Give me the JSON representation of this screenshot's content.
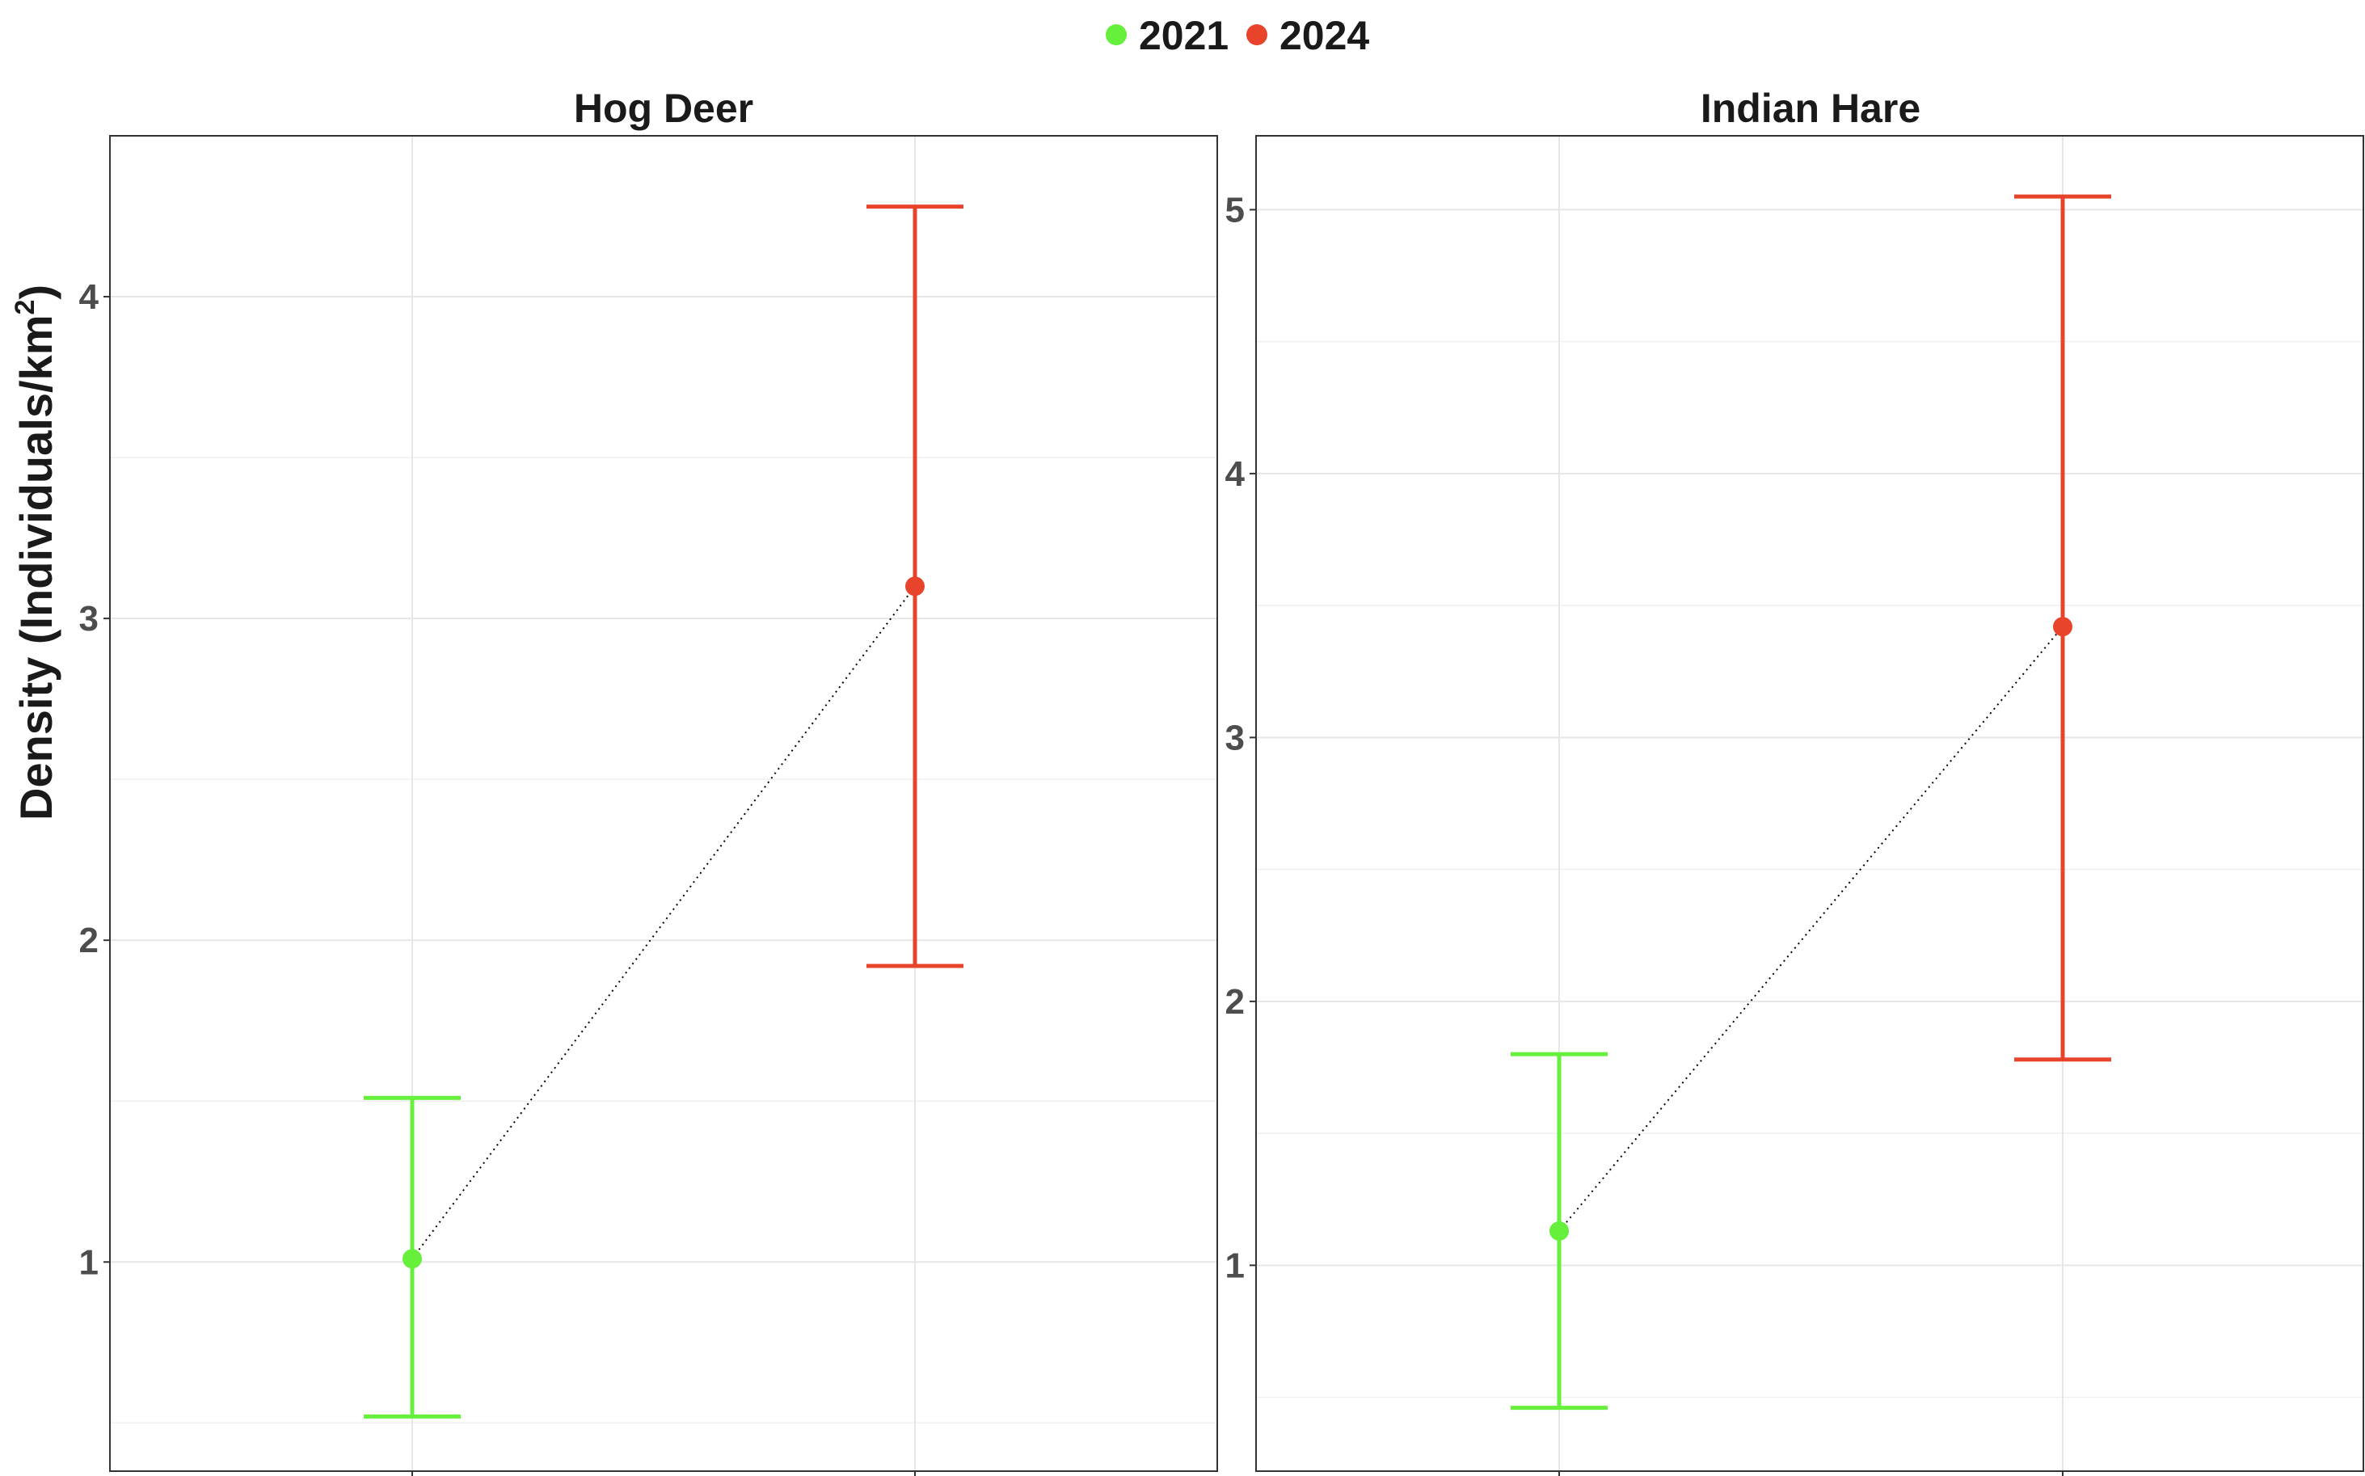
{
  "legend": {
    "items": [
      {
        "label": "2021",
        "color": "#66f03c"
      },
      {
        "label": "2024",
        "color": "#e8442c"
      }
    ]
  },
  "y_axis_title": {
    "main": "Density (Individuals/km",
    "sup": "2",
    "close": ")"
  },
  "chart_data": [
    {
      "type": "scatter",
      "title": "Hog Deer",
      "ylabel": "Density (Individuals/km2)",
      "ylim": [
        0.35,
        4.5
      ],
      "y_ticks": [
        1,
        2,
        3,
        4
      ],
      "x_ticks_labels": [
        "",
        ""
      ],
      "grid": true,
      "series": [
        {
          "name": "2021",
          "color": "#66f03c",
          "x": 1,
          "y": 1.01,
          "lower": 0.52,
          "upper": 1.51
        },
        {
          "name": "2024",
          "color": "#e8442c",
          "x": 2,
          "y": 3.1,
          "lower": 1.92,
          "upper": 4.28
        }
      ],
      "connector": "dotted"
    },
    {
      "type": "scatter",
      "title": "Indian Hare",
      "ylabel": "Density (Individuals/km2)",
      "ylim": [
        0.22,
        5.28
      ],
      "y_ticks": [
        1,
        2,
        3,
        4,
        5
      ],
      "x_ticks_labels": [
        "",
        ""
      ],
      "grid": true,
      "series": [
        {
          "name": "2021",
          "color": "#66f03c",
          "x": 1,
          "y": 1.13,
          "lower": 0.46,
          "upper": 1.8
        },
        {
          "name": "2024",
          "color": "#e8442c",
          "x": 2,
          "y": 3.42,
          "lower": 1.78,
          "upper": 5.05
        }
      ],
      "connector": "dotted"
    }
  ]
}
